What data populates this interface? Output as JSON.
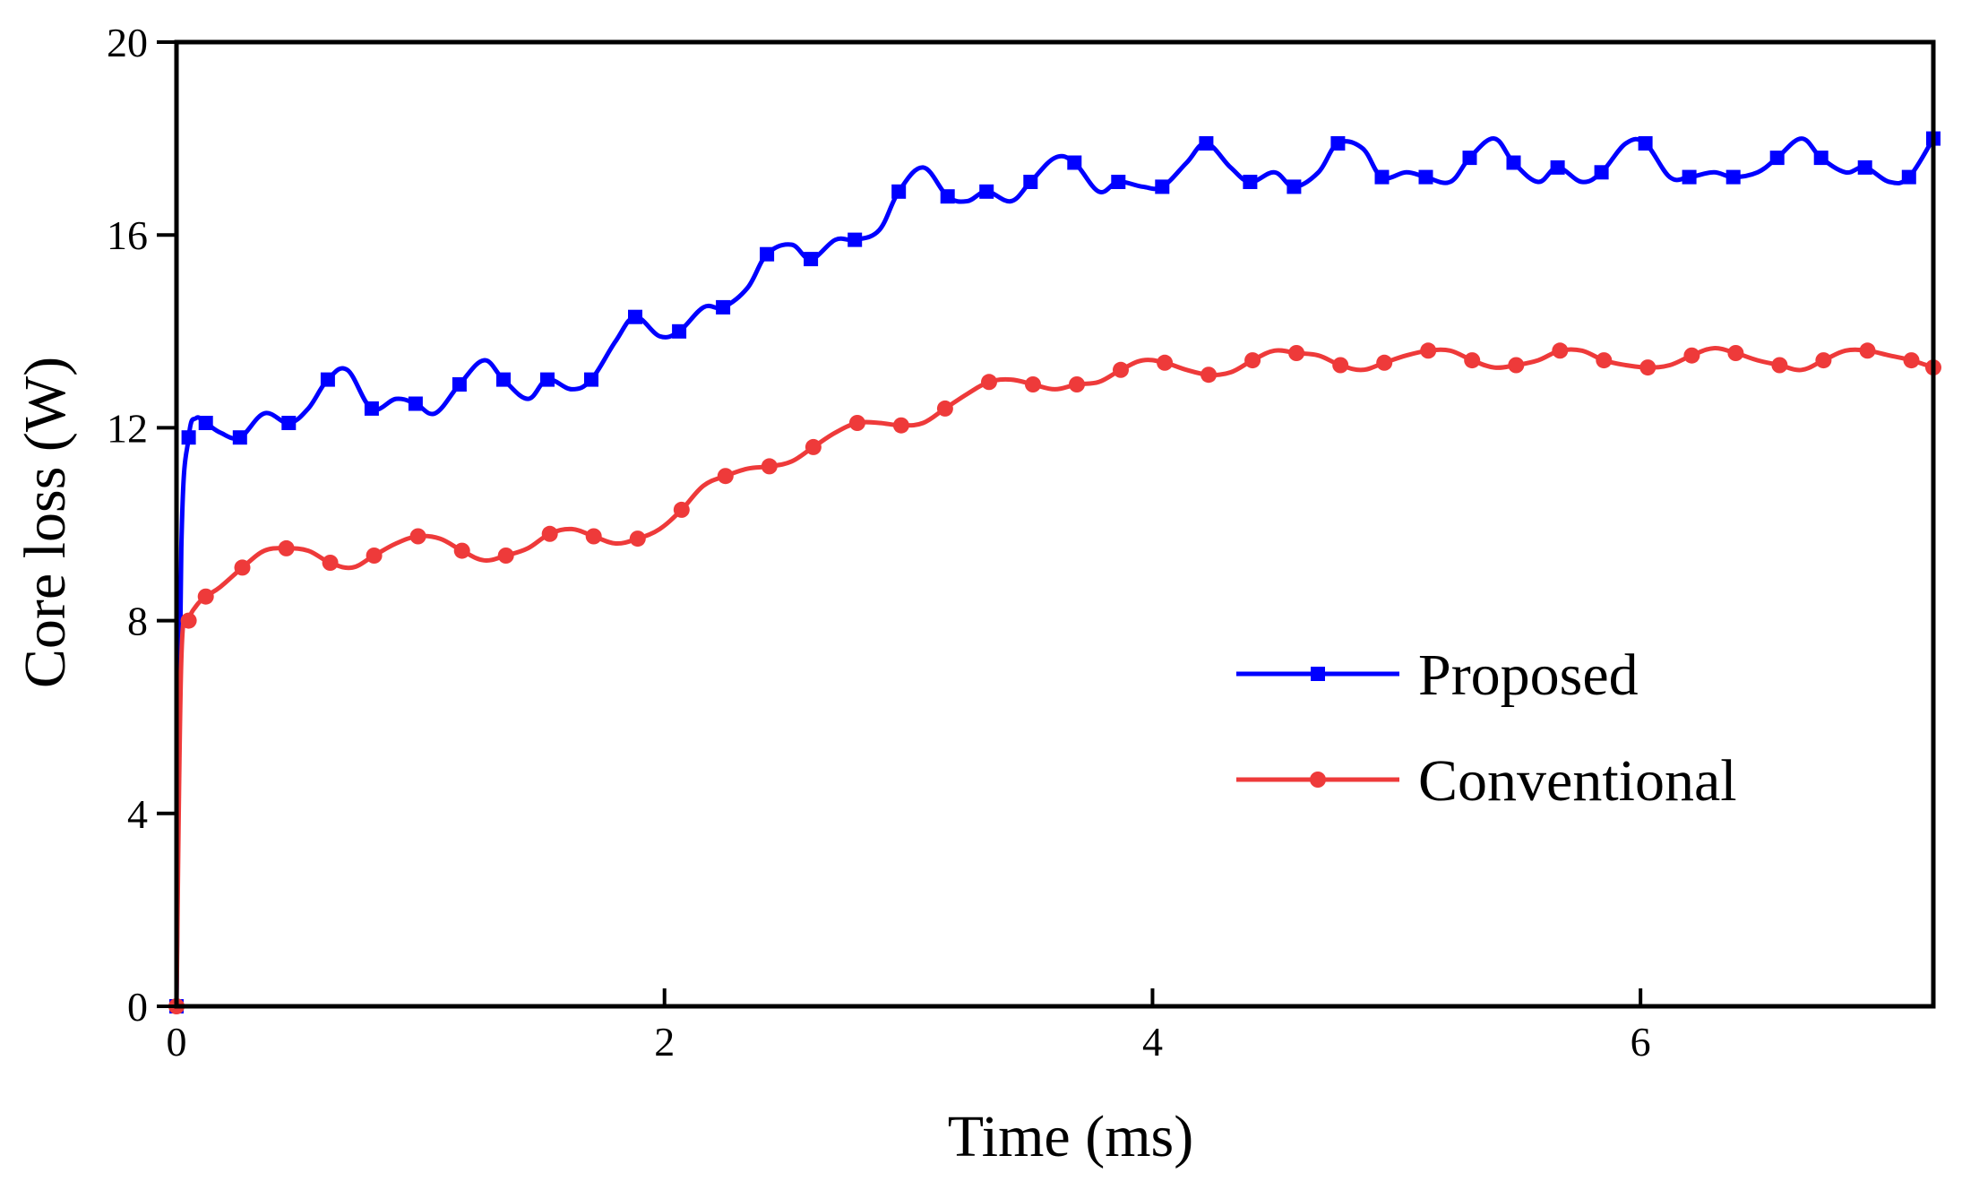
{
  "chart_data": {
    "type": "line",
    "title": "",
    "xlabel": "Time (ms)",
    "ylabel": "Core loss (W)",
    "xlim": [
      0,
      7.2
    ],
    "ylim": [
      0,
      20
    ],
    "xticks": [
      0,
      2,
      4,
      6
    ],
    "yticks": [
      0,
      4,
      8,
      12,
      16,
      20
    ],
    "grid": false,
    "legend_position": "right",
    "series": [
      {
        "name": "Proposed",
        "color": "#0000ff",
        "marker": "square",
        "x": [
          0,
          0.02,
          0.05,
          0.08,
          0.12,
          0.18,
          0.26,
          0.36,
          0.46,
          0.54,
          0.62,
          0.7,
          0.8,
          0.9,
          0.98,
          1.06,
          1.16,
          1.26,
          1.34,
          1.44,
          1.52,
          1.62,
          1.7,
          1.8,
          1.88,
          1.98,
          2.06,
          2.16,
          2.24,
          2.34,
          2.42,
          2.52,
          2.6,
          2.7,
          2.78,
          2.88,
          2.96,
          3.06,
          3.16,
          3.24,
          3.32,
          3.42,
          3.5,
          3.6,
          3.68,
          3.78,
          3.86,
          3.96,
          4.04,
          4.14,
          4.22,
          4.32,
          4.4,
          4.5,
          4.58,
          4.68,
          4.76,
          4.86,
          4.94,
          5.04,
          5.12,
          5.22,
          5.3,
          5.4,
          5.48,
          5.58,
          5.66,
          5.76,
          5.84,
          5.94,
          6.02,
          6.12,
          6.2,
          6.3,
          6.38,
          6.48,
          6.56,
          6.66,
          6.74,
          6.84,
          6.92,
          7.02,
          7.1,
          7.2
        ],
        "values": [
          0,
          9.5,
          11.8,
          12.2,
          12.1,
          11.9,
          11.8,
          12.3,
          12.1,
          12.4,
          13.0,
          13.2,
          12.4,
          12.6,
          12.5,
          12.3,
          12.9,
          13.4,
          13.0,
          12.6,
          13.0,
          12.8,
          13.0,
          13.8,
          14.3,
          13.9,
          14.0,
          14.5,
          14.5,
          14.9,
          15.6,
          15.8,
          15.5,
          15.9,
          15.9,
          16.1,
          16.9,
          17.4,
          16.8,
          16.7,
          16.9,
          16.7,
          17.1,
          17.6,
          17.5,
          16.9,
          17.1,
          17.0,
          17.0,
          17.5,
          17.9,
          17.4,
          17.1,
          17.3,
          17.0,
          17.3,
          17.9,
          17.8,
          17.2,
          17.3,
          17.2,
          17.1,
          17.6,
          18.0,
          17.5,
          17.1,
          17.4,
          17.1,
          17.3,
          17.9,
          17.9,
          17.2,
          17.2,
          17.3,
          17.2,
          17.3,
          17.6,
          18.0,
          17.6,
          17.3,
          17.4,
          17.1,
          17.2,
          18.0
        ]
      },
      {
        "name": "Conventional",
        "color": "#ee3a3a",
        "marker": "circle",
        "x": [
          0,
          0.02,
          0.05,
          0.08,
          0.12,
          0.18,
          0.27,
          0.36,
          0.45,
          0.54,
          0.63,
          0.72,
          0.81,
          0.9,
          0.99,
          1.08,
          1.17,
          1.26,
          1.35,
          1.44,
          1.53,
          1.62,
          1.71,
          1.8,
          1.89,
          1.98,
          2.07,
          2.16,
          2.25,
          2.34,
          2.43,
          2.52,
          2.61,
          2.7,
          2.79,
          2.88,
          2.97,
          3.06,
          3.15,
          3.24,
          3.33,
          3.42,
          3.51,
          3.6,
          3.69,
          3.78,
          3.87,
          3.96,
          4.05,
          4.14,
          4.23,
          4.32,
          4.41,
          4.5,
          4.59,
          4.68,
          4.77,
          4.86,
          4.95,
          5.04,
          5.13,
          5.22,
          5.31,
          5.4,
          5.49,
          5.58,
          5.67,
          5.76,
          5.85,
          5.94,
          6.03,
          6.12,
          6.21,
          6.3,
          6.39,
          6.48,
          6.57,
          6.66,
          6.75,
          6.84,
          6.93,
          7.02,
          7.11,
          7.2
        ],
        "values": [
          0,
          7.2,
          8.0,
          8.3,
          8.5,
          8.7,
          9.1,
          9.45,
          9.5,
          9.45,
          9.2,
          9.1,
          9.35,
          9.6,
          9.75,
          9.7,
          9.45,
          9.25,
          9.35,
          9.5,
          9.8,
          9.9,
          9.75,
          9.6,
          9.7,
          9.9,
          10.3,
          10.8,
          11.0,
          11.15,
          11.2,
          11.3,
          11.6,
          11.9,
          12.1,
          12.1,
          12.05,
          12.1,
          12.4,
          12.7,
          12.95,
          13.0,
          12.9,
          12.8,
          12.9,
          12.95,
          13.2,
          13.4,
          13.35,
          13.2,
          13.1,
          13.15,
          13.4,
          13.6,
          13.55,
          13.5,
          13.3,
          13.2,
          13.35,
          13.5,
          13.6,
          13.6,
          13.4,
          13.25,
          13.3,
          13.4,
          13.6,
          13.6,
          13.4,
          13.3,
          13.25,
          13.3,
          13.5,
          13.65,
          13.55,
          13.4,
          13.3,
          13.2,
          13.4,
          13.6,
          13.6,
          13.5,
          13.4,
          13.25
        ]
      }
    ]
  }
}
